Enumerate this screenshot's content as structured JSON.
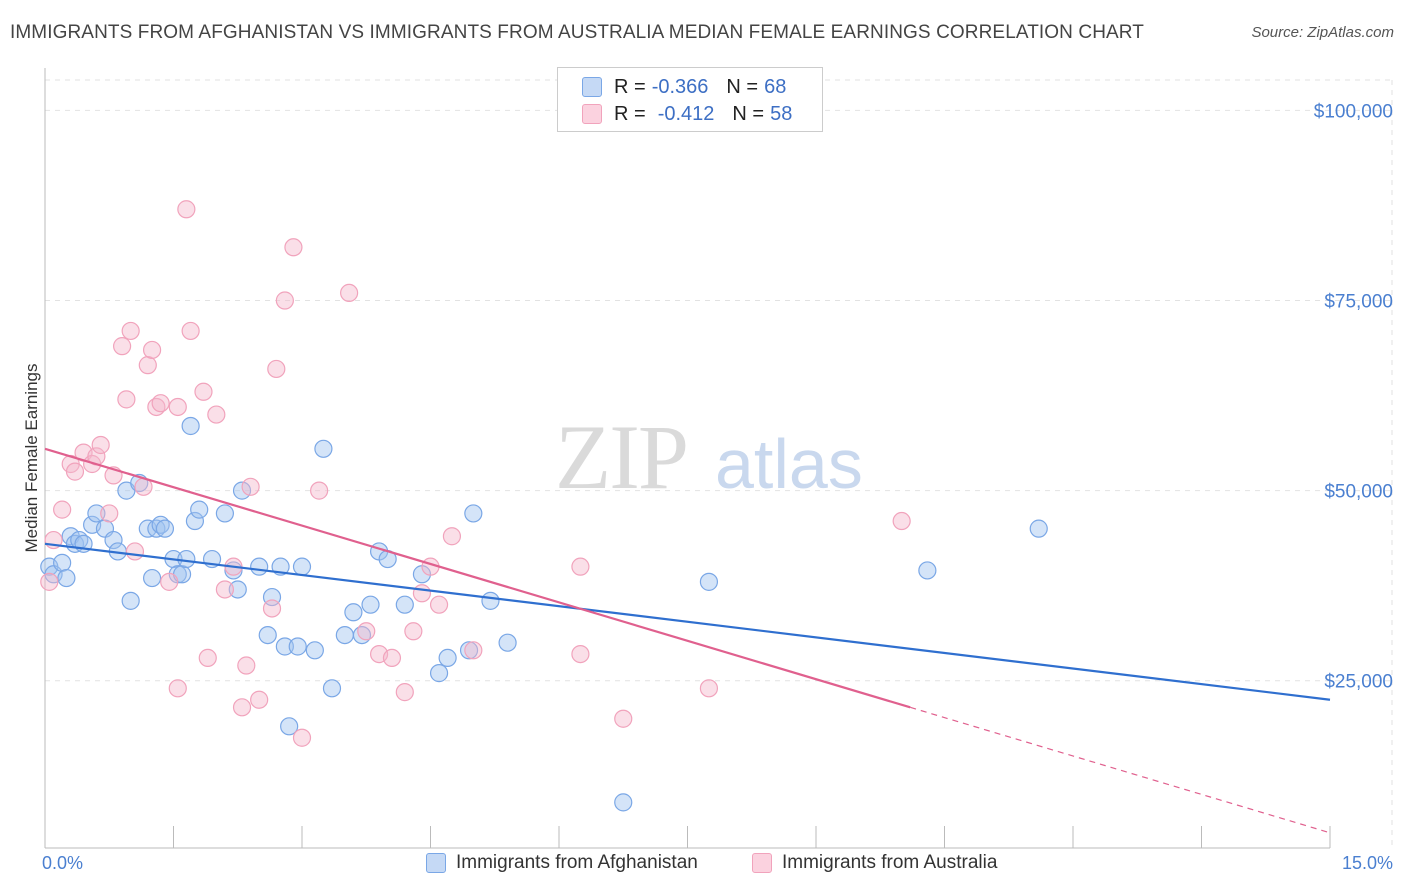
{
  "title": "IMMIGRANTS FROM AFGHANISTAN VS IMMIGRANTS FROM AUSTRALIA MEDIAN FEMALE EARNINGS CORRELATION CHART",
  "source": "Source: ZipAtlas.com",
  "watermark": {
    "zip": "ZIP",
    "atlas": "atlas"
  },
  "legend_top": [
    {
      "r_label": "R =",
      "r_value": "-0.366",
      "n_label": "N =",
      "n_value": "68"
    },
    {
      "r_label": "R =",
      "r_value": "-0.412",
      "n_label": "N =",
      "n_value": "58"
    }
  ],
  "chart_data": {
    "type": "scatter",
    "title": "IMMIGRANTS FROM AFGHANISTAN VS IMMIGRANTS FROM AUSTRALIA MEDIAN FEMALE EARNINGS CORRELATION CHART",
    "xlabel": "",
    "ylabel": "Median Female Earnings",
    "xlim": [
      0,
      15
    ],
    "ylim": [
      3000,
      104000
    ],
    "x_tick_labels": [
      "0.0%",
      "15.0%"
    ],
    "y_ticks": [
      25000,
      50000,
      75000,
      100000
    ],
    "y_tick_labels": [
      "$25,000",
      "$50,000",
      "$75,000",
      "$100,000"
    ],
    "grid": true,
    "legend_position": "top-center",
    "colors": {
      "afghanistan": "#7aa7e6",
      "australia": "#f1a3bc",
      "afghanistan_line": "#2f6fcf",
      "australia_line": "#e0608e"
    },
    "series": [
      {
        "name": "Immigrants from Afghanistan",
        "r": -0.366,
        "n": 68,
        "trend": {
          "x": [
            0.0,
            15.0
          ],
          "y": [
            43000,
            22500
          ],
          "dashed_from": null
        },
        "points": [
          [
            0.05,
            40000
          ],
          [
            0.1,
            39000
          ],
          [
            0.2,
            40500
          ],
          [
            0.25,
            38500
          ],
          [
            0.3,
            44000
          ],
          [
            0.35,
            43000
          ],
          [
            0.4,
            43500
          ],
          [
            0.45,
            43000
          ],
          [
            0.55,
            45500
          ],
          [
            0.6,
            47000
          ],
          [
            0.7,
            45000
          ],
          [
            0.8,
            43500
          ],
          [
            0.85,
            42000
          ],
          [
            0.95,
            50000
          ],
          [
            1.0,
            35500
          ],
          [
            1.1,
            51000
          ],
          [
            1.2,
            45000
          ],
          [
            1.25,
            38500
          ],
          [
            1.3,
            45000
          ],
          [
            1.35,
            45500
          ],
          [
            1.4,
            45000
          ],
          [
            1.5,
            41000
          ],
          [
            1.55,
            39000
          ],
          [
            1.6,
            39000
          ],
          [
            1.65,
            41000
          ],
          [
            1.75,
            46000
          ],
          [
            1.8,
            47500
          ],
          [
            1.7,
            58500
          ],
          [
            1.95,
            41000
          ],
          [
            2.1,
            47000
          ],
          [
            2.2,
            39500
          ],
          [
            2.25,
            37000
          ],
          [
            2.3,
            50000
          ],
          [
            2.5,
            40000
          ],
          [
            2.6,
            31000
          ],
          [
            2.65,
            36000
          ],
          [
            2.75,
            40000
          ],
          [
            2.8,
            29500
          ],
          [
            2.85,
            19000
          ],
          [
            2.95,
            29500
          ],
          [
            3.0,
            40000
          ],
          [
            3.15,
            29000
          ],
          [
            3.25,
            55500
          ],
          [
            3.35,
            24000
          ],
          [
            3.5,
            31000
          ],
          [
            3.6,
            34000
          ],
          [
            3.7,
            31000
          ],
          [
            3.8,
            35000
          ],
          [
            3.9,
            42000
          ],
          [
            4.0,
            41000
          ],
          [
            4.2,
            35000
          ],
          [
            4.4,
            39000
          ],
          [
            4.6,
            26000
          ],
          [
            4.7,
            28000
          ],
          [
            4.95,
            29000
          ],
          [
            5.0,
            47000
          ],
          [
            5.2,
            35500
          ],
          [
            5.4,
            30000
          ],
          [
            6.75,
            9000
          ],
          [
            7.75,
            38000
          ],
          [
            10.3,
            39500
          ],
          [
            11.6,
            45000
          ]
        ]
      },
      {
        "name": "Immigrants from Australia",
        "r": -0.412,
        "n": 58,
        "trend": {
          "x": [
            0.0,
            15.0
          ],
          "y": [
            55500,
            5000
          ],
          "dashed_from": 10.1
        },
        "points": [
          [
            0.05,
            38000
          ],
          [
            0.1,
            43500
          ],
          [
            0.2,
            47500
          ],
          [
            0.3,
            53500
          ],
          [
            0.35,
            52500
          ],
          [
            0.45,
            55000
          ],
          [
            0.55,
            53500
          ],
          [
            0.6,
            54500
          ],
          [
            0.65,
            56000
          ],
          [
            0.75,
            47000
          ],
          [
            0.8,
            52000
          ],
          [
            0.9,
            69000
          ],
          [
            0.95,
            62000
          ],
          [
            1.0,
            71000
          ],
          [
            1.05,
            42000
          ],
          [
            1.15,
            50500
          ],
          [
            1.2,
            66500
          ],
          [
            1.25,
            68500
          ],
          [
            1.3,
            61000
          ],
          [
            1.35,
            61500
          ],
          [
            1.45,
            38000
          ],
          [
            1.55,
            24000
          ],
          [
            1.55,
            61000
          ],
          [
            1.65,
            87000
          ],
          [
            1.7,
            71000
          ],
          [
            1.85,
            63000
          ],
          [
            1.9,
            28000
          ],
          [
            2.0,
            60000
          ],
          [
            2.1,
            37000
          ],
          [
            2.2,
            40000
          ],
          [
            2.3,
            21500
          ],
          [
            2.35,
            27000
          ],
          [
            2.4,
            50500
          ],
          [
            2.5,
            22500
          ],
          [
            2.65,
            34500
          ],
          [
            2.7,
            66000
          ],
          [
            2.8,
            75000
          ],
          [
            2.9,
            82000
          ],
          [
            3.0,
            17500
          ],
          [
            3.2,
            50000
          ],
          [
            3.55,
            76000
          ],
          [
            3.75,
            31500
          ],
          [
            3.9,
            28500
          ],
          [
            4.05,
            28000
          ],
          [
            4.2,
            23500
          ],
          [
            4.3,
            31500
          ],
          [
            4.4,
            36500
          ],
          [
            4.5,
            40000
          ],
          [
            4.6,
            35000
          ],
          [
            4.75,
            44000
          ],
          [
            5.0,
            29000
          ],
          [
            6.25,
            40000
          ],
          [
            6.25,
            28500
          ],
          [
            6.75,
            20000
          ],
          [
            7.75,
            24000
          ],
          [
            10.0,
            46000
          ]
        ]
      }
    ]
  },
  "bottom_legend": [
    {
      "label": "Immigrants from Afghanistan"
    },
    {
      "label": "Immigrants from Australia"
    }
  ]
}
